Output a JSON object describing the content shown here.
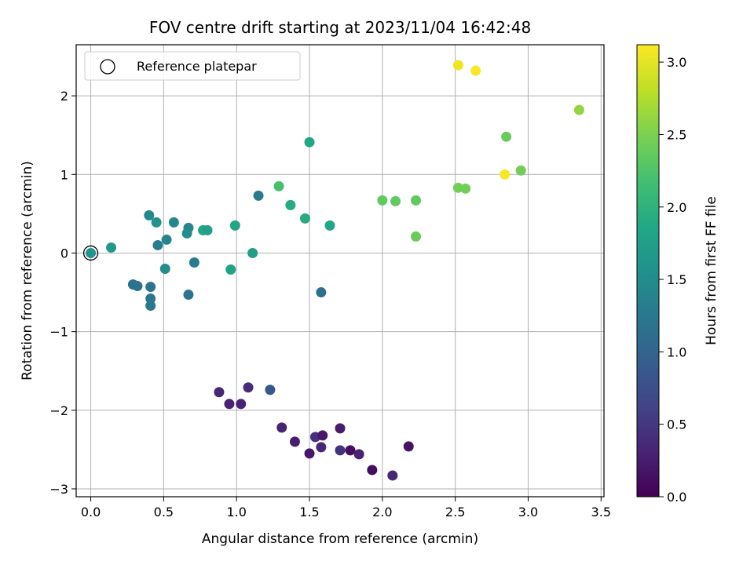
{
  "chart_data": {
    "type": "scatter",
    "title": "FOV centre drift starting at 2023/11/04 16:42:48",
    "xlabel": "Angular distance from reference (arcmin)",
    "ylabel": "Rotation from reference (arcmin)",
    "xlim": [
      -0.1,
      3.52
    ],
    "ylim": [
      -3.1,
      2.65
    ],
    "xticks": [
      "0.0",
      "0.5",
      "1.0",
      "1.5",
      "2.0",
      "2.5",
      "3.0",
      "3.5"
    ],
    "yticks": [
      "−3",
      "−2",
      "−1",
      "0",
      "1",
      "2"
    ],
    "xtick_values": [
      0,
      0.5,
      1.0,
      1.5,
      2.0,
      2.5,
      3.0,
      3.5
    ],
    "ytick_values": [
      -3,
      -2,
      -1,
      0,
      1,
      2
    ],
    "grid": true,
    "legend": {
      "position": "top-left",
      "label": "Reference platepar"
    },
    "colorbar": {
      "label": "Hours from first FF file",
      "range": [
        0,
        3.12
      ],
      "colormap": "viridis",
      "ticks": [
        "0.0",
        "0.5",
        "1.0",
        "1.5",
        "2.0",
        "2.5",
        "3.0"
      ],
      "tick_values": [
        0,
        0.5,
        1.0,
        1.5,
        2.0,
        2.5,
        3.0
      ]
    },
    "reference_point": {
      "x": 0,
      "y": 0
    },
    "points": [
      {
        "x": 0.0,
        "y": 0.0,
        "c": 1.6
      },
      {
        "x": 0.14,
        "y": 0.07,
        "c": 1.65
      },
      {
        "x": 0.29,
        "y": -0.4,
        "c": 1.15
      },
      {
        "x": 0.32,
        "y": -0.42,
        "c": 1.18
      },
      {
        "x": 0.41,
        "y": -0.43,
        "c": 1.2
      },
      {
        "x": 0.41,
        "y": -0.58,
        "c": 1.22
      },
      {
        "x": 0.41,
        "y": -0.67,
        "c": 1.25
      },
      {
        "x": 0.4,
        "y": 0.48,
        "c": 1.45
      },
      {
        "x": 0.45,
        "y": 0.39,
        "c": 1.6
      },
      {
        "x": 0.46,
        "y": 0.1,
        "c": 1.28
      },
      {
        "x": 0.52,
        "y": 0.17,
        "c": 1.4
      },
      {
        "x": 0.51,
        "y": -0.2,
        "c": 1.5
      },
      {
        "x": 0.57,
        "y": 0.39,
        "c": 1.45
      },
      {
        "x": 0.67,
        "y": 0.32,
        "c": 1.4
      },
      {
        "x": 0.66,
        "y": 0.25,
        "c": 1.5
      },
      {
        "x": 0.67,
        "y": -0.53,
        "c": 1.2
      },
      {
        "x": 0.71,
        "y": -0.12,
        "c": 1.3
      },
      {
        "x": 0.77,
        "y": 0.29,
        "c": 1.85
      },
      {
        "x": 0.8,
        "y": 0.29,
        "c": 1.75
      },
      {
        "x": 0.96,
        "y": -0.21,
        "c": 1.8
      },
      {
        "x": 0.99,
        "y": 0.35,
        "c": 1.85
      },
      {
        "x": 1.11,
        "y": 0.0,
        "c": 1.72
      },
      {
        "x": 1.15,
        "y": 0.73,
        "c": 1.3
      },
      {
        "x": 1.29,
        "y": 0.85,
        "c": 2.2
      },
      {
        "x": 1.37,
        "y": 0.61,
        "c": 1.9
      },
      {
        "x": 1.47,
        "y": 0.44,
        "c": 1.9
      },
      {
        "x": 1.5,
        "y": 1.41,
        "c": 1.85
      },
      {
        "x": 1.58,
        "y": -0.5,
        "c": 1.15
      },
      {
        "x": 1.64,
        "y": 0.35,
        "c": 1.85
      },
      {
        "x": 2.0,
        "y": 0.67,
        "c": 2.35
      },
      {
        "x": 2.09,
        "y": 0.66,
        "c": 2.35
      },
      {
        "x": 2.23,
        "y": 0.67,
        "c": 2.35
      },
      {
        "x": 2.23,
        "y": 0.21,
        "c": 2.4
      },
      {
        "x": 2.52,
        "y": 0.83,
        "c": 2.45
      },
      {
        "x": 2.57,
        "y": 0.82,
        "c": 2.45
      },
      {
        "x": 2.84,
        "y": 1.0,
        "c": 3.1
      },
      {
        "x": 2.85,
        "y": 1.48,
        "c": 2.4
      },
      {
        "x": 2.95,
        "y": 1.05,
        "c": 2.45
      },
      {
        "x": 2.52,
        "y": 2.39,
        "c": 3.05
      },
      {
        "x": 2.64,
        "y": 2.32,
        "c": 3.1
      },
      {
        "x": 3.35,
        "y": 1.82,
        "c": 2.6
      },
      {
        "x": 0.88,
        "y": -1.77,
        "c": 0.35
      },
      {
        "x": 0.95,
        "y": -1.92,
        "c": 0.3
      },
      {
        "x": 1.03,
        "y": -1.92,
        "c": 0.3
      },
      {
        "x": 1.08,
        "y": -1.71,
        "c": 0.4
      },
      {
        "x": 1.23,
        "y": -1.74,
        "c": 0.85
      },
      {
        "x": 1.31,
        "y": -2.22,
        "c": 0.3
      },
      {
        "x": 1.4,
        "y": -2.4,
        "c": 0.25
      },
      {
        "x": 1.5,
        "y": -2.55,
        "c": 0.2
      },
      {
        "x": 1.54,
        "y": -2.34,
        "c": 0.45
      },
      {
        "x": 1.58,
        "y": -2.47,
        "c": 0.35
      },
      {
        "x": 1.59,
        "y": -2.32,
        "c": 0.2
      },
      {
        "x": 1.71,
        "y": -2.23,
        "c": 0.25
      },
      {
        "x": 1.71,
        "y": -2.51,
        "c": 0.45
      },
      {
        "x": 1.78,
        "y": -2.51,
        "c": 0.1
      },
      {
        "x": 1.84,
        "y": -2.56,
        "c": 0.3
      },
      {
        "x": 1.93,
        "y": -2.76,
        "c": 0.1
      },
      {
        "x": 2.07,
        "y": -2.83,
        "c": 0.35
      },
      {
        "x": 2.18,
        "y": -2.46,
        "c": 0.15
      }
    ]
  }
}
